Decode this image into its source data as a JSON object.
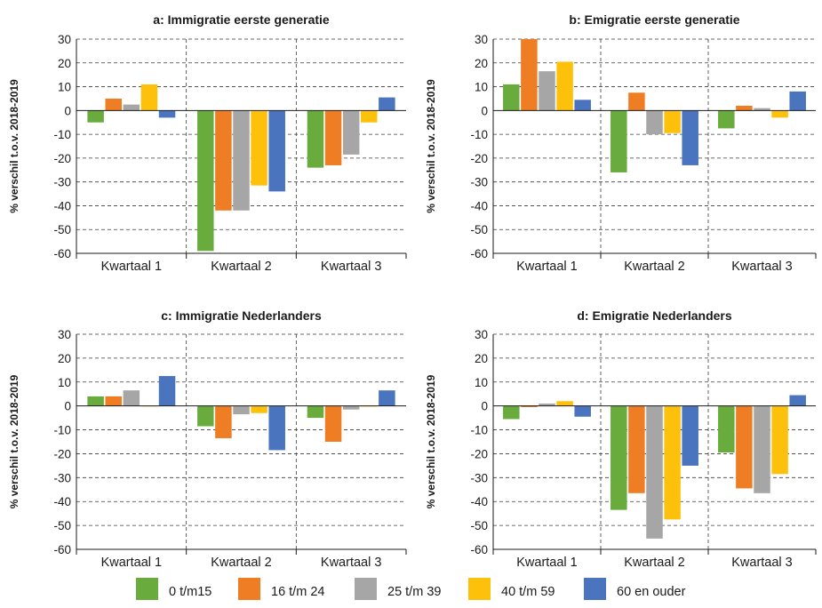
{
  "colors": {
    "0 t/m15": "#6aab3e",
    "16 t/m 24": "#ee7d23",
    "25 t/m 39": "#a6a6a6",
    "40 t/m 59": "#fdc10c",
    "60 en ouder": "#4a74be"
  },
  "legend": [
    "0 t/m15",
    "16 t/m 24",
    "25 t/m 39",
    "40 t/m 59",
    "60 en ouder"
  ],
  "chart_data": [
    {
      "type": "bar",
      "title": "a: Immigratie eerste generatie",
      "ylabel": "% verschil t.o.v. 2018-2019",
      "ylim": [
        -60,
        30
      ],
      "yticks": [
        "30",
        "20",
        "10",
        "0",
        "-10",
        "-20",
        "-30",
        "-40",
        "-50",
        "-60"
      ],
      "grid": "horizontal dashed",
      "categories": [
        "Kwartaal 1",
        "Kwartaal 2",
        "Kwartaal 3"
      ],
      "series": [
        {
          "name": "0 t/m15",
          "values": [
            -5,
            -59,
            -24
          ]
        },
        {
          "name": "16 t/m 24",
          "values": [
            5,
            -42,
            -23
          ]
        },
        {
          "name": "25 t/m 39",
          "values": [
            2.5,
            -42,
            -18.5
          ]
        },
        {
          "name": "40 t/m 59",
          "values": [
            11,
            -31.5,
            -5
          ]
        },
        {
          "name": "60 en ouder",
          "values": [
            -3,
            -34,
            5.5
          ]
        }
      ]
    },
    {
      "type": "bar",
      "title": "b: Emigratie eerste generatie",
      "ylabel": "% verschil t.o.v. 2018-2019",
      "ylim": [
        -60,
        30
      ],
      "yticks": [
        "30",
        "20",
        "10",
        "0",
        "-10",
        "-20",
        "-30",
        "-40",
        "-50",
        "-60"
      ],
      "grid": "horizontal dashed",
      "categories": [
        "Kwartaal 1",
        "Kwartaal 2",
        "Kwartaal 3"
      ],
      "series": [
        {
          "name": "0 t/m15",
          "values": [
            11,
            -26,
            -7.5
          ]
        },
        {
          "name": "16 t/m 24",
          "values": [
            30,
            7.5,
            2
          ]
        },
        {
          "name": "25 t/m 39",
          "values": [
            16.5,
            -10,
            1
          ]
        },
        {
          "name": "40 t/m 59",
          "values": [
            20.5,
            -9.5,
            -3
          ]
        },
        {
          "name": "60 en ouder",
          "values": [
            4.5,
            -23,
            8
          ]
        }
      ]
    },
    {
      "type": "bar",
      "title": "c: Immigratie Nederlanders",
      "ylabel": "% verschil t.o.v. 2018-2019",
      "ylim": [
        -60,
        30
      ],
      "yticks": [
        "30",
        "20",
        "10",
        "0",
        "-10",
        "-20",
        "-30",
        "-40",
        "-50",
        "-60"
      ],
      "grid": "horizontal dashed",
      "categories": [
        "Kwartaal 1",
        "Kwartaal 2",
        "Kwartaal 3"
      ],
      "series": [
        {
          "name": "0 t/m15",
          "values": [
            4,
            -8.5,
            -5
          ]
        },
        {
          "name": "16 t/m 24",
          "values": [
            4,
            -13.5,
            -15
          ]
        },
        {
          "name": "25 t/m 39",
          "values": [
            6.5,
            -3.5,
            -1.5
          ]
        },
        {
          "name": "40 t/m 59",
          "values": [
            0,
            -3,
            -0.3
          ]
        },
        {
          "name": "60 en ouder",
          "values": [
            12.5,
            -18.5,
            6.5
          ]
        }
      ]
    },
    {
      "type": "bar",
      "title": "d: Emigratie Nederlanders",
      "ylabel": "% verschil t.o.v. 2018-2019",
      "ylim": [
        -60,
        30
      ],
      "yticks": [
        "30",
        "20",
        "10",
        "0",
        "-10",
        "-20",
        "-30",
        "-40",
        "-50",
        "-60"
      ],
      "grid": "horizontal dashed",
      "categories": [
        "Kwartaal 1",
        "Kwartaal 2",
        "Kwartaal 3"
      ],
      "series": [
        {
          "name": "0 t/m15",
          "values": [
            -5.5,
            -43.5,
            -19.5
          ]
        },
        {
          "name": "16 t/m 24",
          "values": [
            -0.5,
            -36.5,
            -34.5
          ]
        },
        {
          "name": "25 t/m 39",
          "values": [
            1,
            -55.5,
            -36.5
          ]
        },
        {
          "name": "40 t/m 59",
          "values": [
            2,
            -47.5,
            -28.5
          ]
        },
        {
          "name": "60 en ouder",
          "values": [
            -4.5,
            -25,
            4.5
          ]
        }
      ]
    }
  ]
}
